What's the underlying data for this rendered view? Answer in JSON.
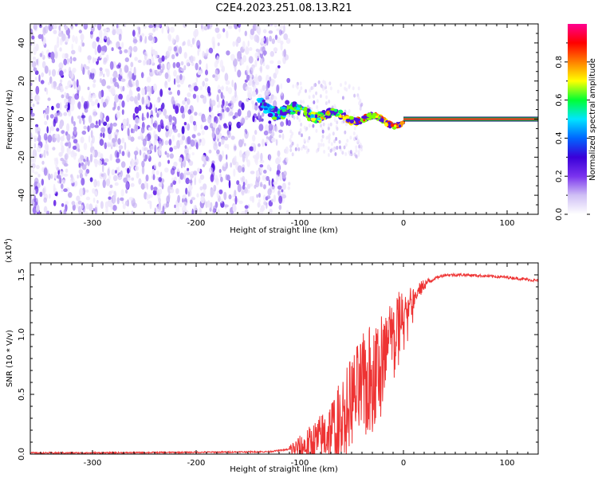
{
  "title": "C2E4.2023.251.08.13.R21",
  "chart_data": [
    {
      "type": "heatmap",
      "panel": "top",
      "xlabel": "Height of straight line (km)",
      "ylabel": "Frequency (Hz)",
      "xlim": [
        -360,
        130
      ],
      "ylim": [
        -50,
        50
      ],
      "xticks": [
        -300,
        -200,
        -100,
        0,
        100
      ],
      "yticks": [
        -40,
        -20,
        0,
        20,
        40
      ],
      "colorbar": {
        "label": "Normalized spectral amplitude",
        "range": [
          0,
          1
        ],
        "ticks": [
          0.0,
          0.2,
          0.4,
          0.6,
          0.8
        ],
        "colors": [
          "#ffffff",
          "#cfbff5",
          "#7a33ee",
          "#3a00d9",
          "#0066ff",
          "#00e5ff",
          "#00ff33",
          "#ffff00",
          "#ff8000",
          "#ff0000",
          "#ff0090"
        ]
      },
      "description_points": {
        "noise_region_x": [
          -360,
          -110
        ],
        "signal_onset_x": -140,
        "carrier_line_x": [
          0,
          130
        ],
        "carrier_freq": 0
      }
    },
    {
      "type": "line",
      "panel": "bottom",
      "xlabel": "Height of straight line (km)",
      "ylabel": "SNR (10 * V/v)",
      "scale_label": "(x10",
      "scale_exp": "4",
      "scale_close": ")",
      "xlim": [
        -360,
        130
      ],
      "ylim": [
        0,
        1.6
      ],
      "xticks": [
        -300,
        -200,
        -100,
        0,
        100
      ],
      "yticks": [
        0.0,
        0.5,
        1.0,
        1.5
      ],
      "ytick_labels": [
        "0.0",
        "0.5",
        "1.0",
        "1.5"
      ],
      "series": [
        {
          "color": "#ee3333",
          "x": [
            -360,
            -300,
            -200,
            -130,
            -110,
            -100,
            -90,
            -80,
            -70,
            -60,
            -50,
            -40,
            -30,
            -20,
            -10,
            0,
            10,
            20,
            30,
            40,
            60,
            80,
            100,
            130
          ],
          "y": [
            0.01,
            0.01,
            0.015,
            0.02,
            0.04,
            0.05,
            0.08,
            0.12,
            0.2,
            0.3,
            0.45,
            0.55,
            0.62,
            0.8,
            0.95,
            1.1,
            1.3,
            1.42,
            1.47,
            1.5,
            1.5,
            1.49,
            1.48,
            1.45
          ]
        }
      ]
    }
  ]
}
